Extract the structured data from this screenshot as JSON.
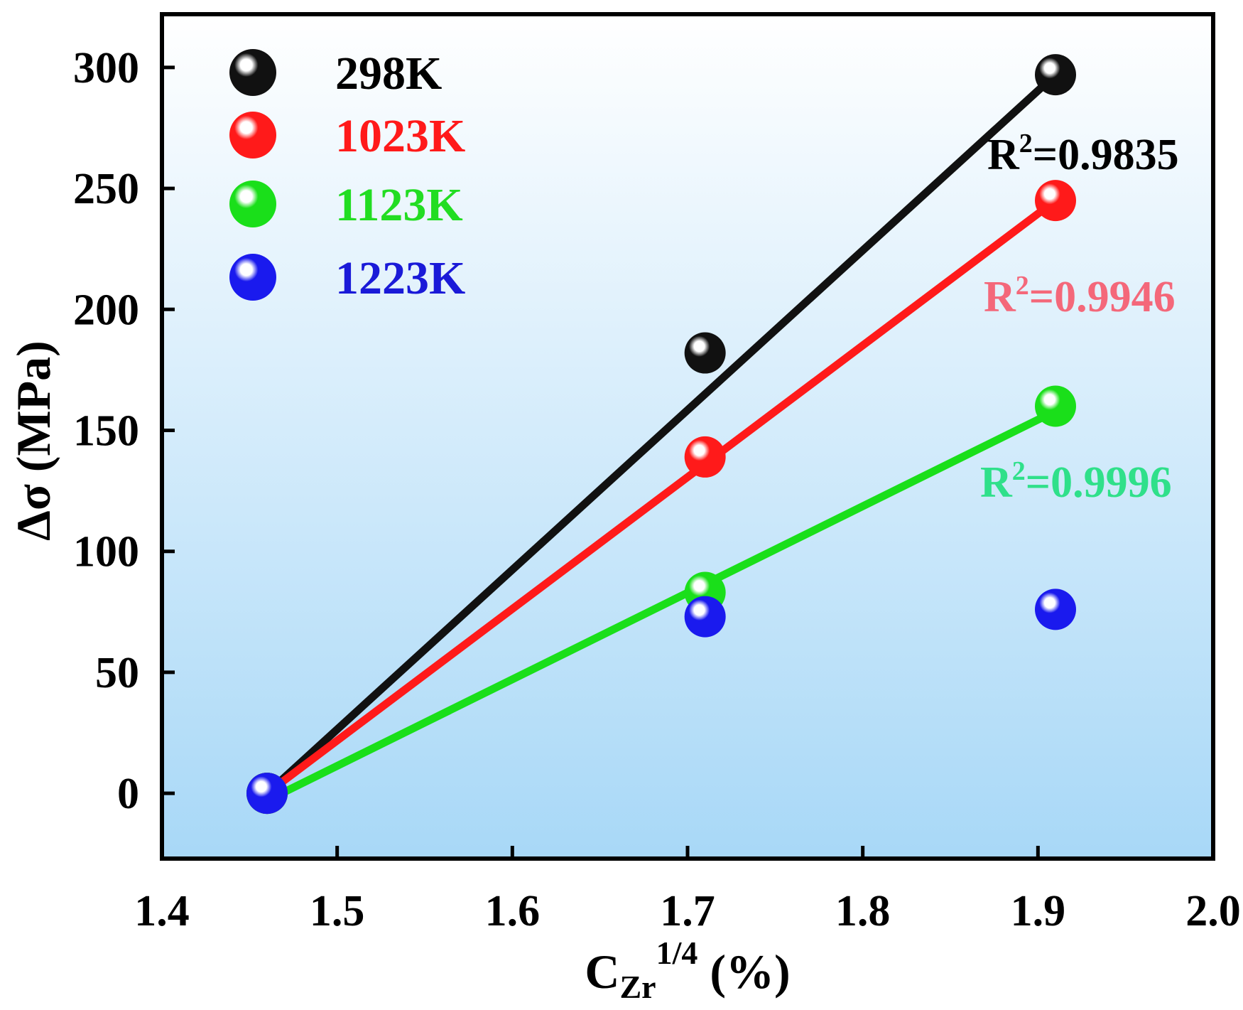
{
  "chart_data": {
    "type": "scatter",
    "title": "",
    "xlabel": {
      "base": "C",
      "sub": "Zr",
      "sup": "1/4",
      "unit": " (%)"
    },
    "ylabel": "Δσ (MPa)",
    "xlim": [
      1.4,
      2.0
    ],
    "ylim": [
      -27,
      322
    ],
    "xticks": [
      1.4,
      1.5,
      1.6,
      1.7,
      1.8,
      1.9,
      2.0
    ],
    "xtick_labels": [
      "1.4",
      "1.5",
      "1.6",
      "1.7",
      "1.8",
      "1.9",
      "2.0"
    ],
    "yticks": [
      0,
      50,
      100,
      150,
      200,
      250,
      300
    ],
    "ytick_labels": [
      "0",
      "50",
      "100",
      "150",
      "200",
      "250",
      "300"
    ],
    "legend_position": "top-left",
    "series": [
      {
        "name": "298K",
        "color": "#111111",
        "label_color": "#000000",
        "x": [
          1.46,
          1.71,
          1.91
        ],
        "y": [
          0,
          182,
          297
        ],
        "fit": {
          "x": [
            1.46,
            1.91
          ],
          "y": [
            0,
            297
          ]
        },
        "r2_label": {
          "base": "R",
          "sup": "2",
          "rest": "=0.9835"
        }
      },
      {
        "name": "1023K",
        "color": "#ff1a1a",
        "label_color": "#ff1a1a",
        "x": [
          1.46,
          1.71,
          1.91
        ],
        "y": [
          0,
          139,
          245
        ],
        "fit": {
          "x": [
            1.46,
            1.91
          ],
          "y": [
            0,
            245
          ]
        },
        "r2_label": {
          "base": "R",
          "sup": "2",
          "rest": "=0.9946"
        }
      },
      {
        "name": "1123K",
        "color": "#1adf1a",
        "label_color": "#22dd22",
        "x": [
          1.46,
          1.71,
          1.91
        ],
        "y": [
          0,
          83,
          160
        ],
        "fit": {
          "x": [
            1.46,
            1.91
          ],
          "y": [
            -3,
            158
          ]
        },
        "r2_label": {
          "base": "R",
          "sup": "2",
          "rest": "=0.9996"
        }
      },
      {
        "name": "1223K",
        "color": "#1a1aee",
        "label_color": "#1a1ad8",
        "x": [
          1.46,
          1.71,
          1.91
        ],
        "y": [
          0,
          73,
          76
        ],
        "fit": null,
        "r2_label": null
      }
    ],
    "style": {
      "bg_top": "#ffffff",
      "bg_bottom": "#a8d8f7",
      "r2_colors": [
        "#000000",
        "#f4687a",
        "#2fe08a"
      ]
    }
  }
}
